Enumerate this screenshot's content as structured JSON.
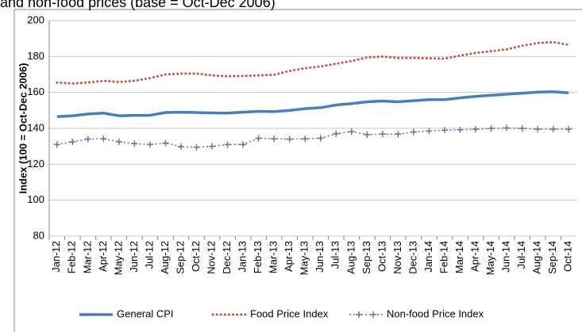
{
  "chart_data": {
    "type": "line",
    "title": "and non-food prices (base = Oct-Dec 2006)",
    "y_label": "Index (100 = Oct-Dec 2006)",
    "categories": [
      "Jan-12",
      "Feb-12",
      "Mar-12",
      "Apr-12",
      "May-12",
      "Jun-12",
      "Jul-12",
      "Aug-12",
      "Sep-12",
      "Oct-12",
      "Nov-12",
      "Dec-12",
      "Jan-13",
      "Feb-13",
      "Mar-13",
      "Apr-13",
      "May-13",
      "Jun-13",
      "Jul-13",
      "Aug-13",
      "Sep-13",
      "Oct-13",
      "Nov-13",
      "Dec-13",
      "Jan-14",
      "Feb-14",
      "Mar-14",
      "Apr-14",
      "May-14",
      "Jun-14",
      "Jul-14",
      "Aug-14",
      "Sep-14",
      "Oct-14"
    ],
    "series": [
      {
        "name": "General CPI",
        "color": "#4a7ebb",
        "style": "solid",
        "values": [
          146.5,
          147,
          148,
          148.5,
          147,
          147.2,
          147.3,
          148.8,
          149,
          148.8,
          148.6,
          148.5,
          149,
          149.5,
          149.3,
          150,
          151,
          151.5,
          153,
          153.8,
          154.8,
          155.2,
          154.8,
          155.4,
          156,
          156,
          157,
          157.8,
          158.4,
          159,
          159.6,
          160.2,
          160.4,
          159.8
        ]
      },
      {
        "name": "Food Price Index",
        "color": "#c0504d",
        "style": "dotted",
        "values": [
          165.5,
          165,
          165.5,
          166.5,
          165.8,
          166.5,
          168,
          170,
          170.5,
          170.5,
          169.5,
          169,
          169.2,
          169.5,
          169.8,
          172,
          173.5,
          174.5,
          176,
          177.5,
          179.5,
          180,
          179.2,
          179.2,
          179,
          178.8,
          180.5,
          182,
          183,
          184,
          186,
          187.5,
          188,
          186.5
        ]
      },
      {
        "name": "Non-food Price Index",
        "color": "#8064a2",
        "style": "dashed-plus",
        "values": [
          131,
          132.5,
          134,
          134.2,
          132.5,
          131.5,
          131,
          131.8,
          129.8,
          129.5,
          130,
          131,
          131,
          134.5,
          134.2,
          134,
          134.2,
          134.5,
          137,
          138.2,
          136.5,
          136.8,
          136.8,
          138,
          138.5,
          139,
          139.2,
          139.5,
          140,
          140.2,
          140,
          139.5,
          139.5,
          139.5
        ]
      }
    ],
    "ylim": [
      80,
      200
    ],
    "yticks": [
      80,
      100,
      120,
      140,
      160,
      180,
      200
    ],
    "grid": true,
    "legend": "bottom"
  }
}
